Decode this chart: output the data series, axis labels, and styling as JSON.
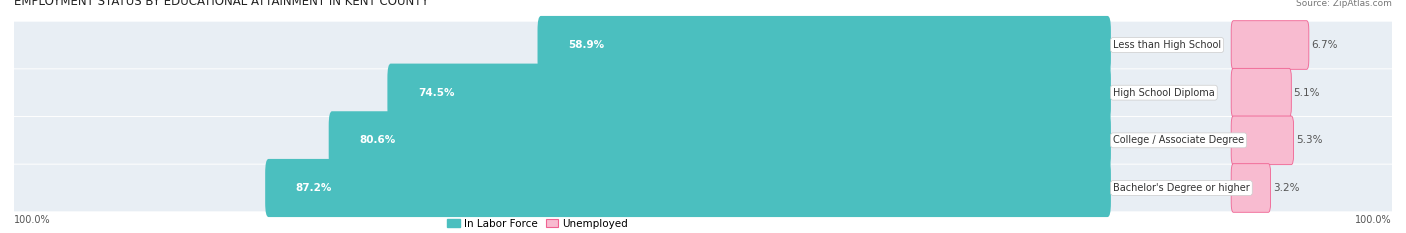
{
  "title": "EMPLOYMENT STATUS BY EDUCATIONAL ATTAINMENT IN KENT COUNTY",
  "source": "Source: ZipAtlas.com",
  "categories": [
    "Less than High School",
    "High School Diploma",
    "College / Associate Degree",
    "Bachelor's Degree or higher"
  ],
  "labor_force": [
    58.9,
    74.5,
    80.6,
    87.2
  ],
  "unemployed": [
    6.7,
    5.1,
    5.3,
    3.2
  ],
  "labor_force_color": "#4BBFBF",
  "unemployed_color": "#F06292",
  "unemployed_color_light": "#F8BBD0",
  "bg_row_color": "#E8EEF4",
  "bar_height": 0.62,
  "axis_label_left": "100.0%",
  "axis_label_right": "100.0%",
  "title_fontsize": 8.5,
  "label_fontsize": 7.5,
  "tick_fontsize": 7,
  "legend_fontsize": 7.5,
  "source_fontsize": 6.5
}
